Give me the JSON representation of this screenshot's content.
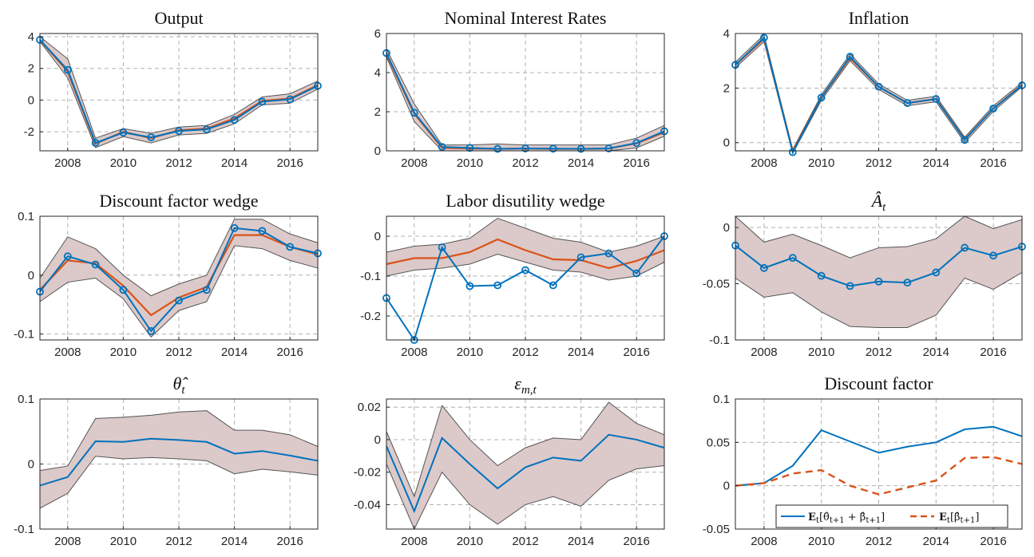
{
  "figure": {
    "colors": {
      "model": "#0072BD",
      "median": "#D95319",
      "band_fill": "#dcc9c9",
      "band_edge": "#555555",
      "grid": "#b0b0b0",
      "axis": "#262626"
    },
    "x_ticks": [
      2008,
      2010,
      2012,
      2014,
      2016
    ],
    "x_range": [
      2007,
      2017
    ]
  },
  "chart_data": [
    {
      "type": "line",
      "title": "Output",
      "xlabel": "",
      "ylabel": "",
      "xlim": [
        2007,
        2017
      ],
      "ylim": [
        -3.2,
        4.2
      ],
      "yticks": [
        -2,
        0,
        2,
        4
      ],
      "grid": true,
      "markers": true,
      "x": [
        2007,
        2008,
        2009,
        2010,
        2011,
        2012,
        2013,
        2014,
        2015,
        2016,
        2017
      ],
      "band": {
        "lower": [
          3.7,
          1.4,
          -3.0,
          -2.3,
          -2.7,
          -2.2,
          -2.1,
          -1.5,
          -0.3,
          -0.2,
          0.7
        ],
        "upper": [
          4.0,
          2.6,
          -2.4,
          -1.8,
          -2.1,
          -1.7,
          -1.6,
          -0.9,
          0.2,
          0.4,
          1.2
        ]
      },
      "series": [
        {
          "role": "model",
          "values": [
            3.8,
            1.9,
            -2.7,
            -2.05,
            -2.35,
            -1.95,
            -1.85,
            -1.25,
            -0.1,
            0.05,
            0.9
          ]
        },
        {
          "role": "median",
          "values": [
            3.8,
            1.8,
            -2.75,
            -2.0,
            -2.4,
            -1.9,
            -1.8,
            -1.15,
            -0.05,
            0.1,
            0.95
          ]
        }
      ]
    },
    {
      "type": "line",
      "title": "Nominal Interest Rates",
      "xlabel": "",
      "ylabel": "",
      "xlim": [
        2007,
        2017
      ],
      "ylim": [
        0,
        6
      ],
      "yticks": [
        0,
        2,
        4,
        6
      ],
      "grid": true,
      "markers": true,
      "x": [
        2007,
        2008,
        2009,
        2010,
        2011,
        2012,
        2013,
        2014,
        2015,
        2016,
        2017
      ],
      "band": {
        "lower": [
          4.8,
          1.5,
          0.0,
          0.0,
          0.0,
          0.0,
          0.0,
          0.0,
          0.0,
          0.15,
          0.75
        ],
        "upper": [
          5.2,
          2.4,
          0.3,
          0.3,
          0.35,
          0.3,
          0.3,
          0.3,
          0.3,
          0.65,
          1.3
        ]
      },
      "series": [
        {
          "role": "model",
          "values": [
            5.0,
            1.95,
            0.2,
            0.15,
            0.1,
            0.12,
            0.11,
            0.1,
            0.12,
            0.4,
            1.0
          ]
        },
        {
          "role": "median",
          "values": [
            4.95,
            1.9,
            0.15,
            0.12,
            0.1,
            0.12,
            0.1,
            0.1,
            0.12,
            0.38,
            0.95
          ]
        }
      ]
    },
    {
      "type": "line",
      "title": "Inflation",
      "xlabel": "",
      "ylabel": "",
      "xlim": [
        2007,
        2017
      ],
      "ylim": [
        -0.3,
        4
      ],
      "yticks": [
        0,
        2,
        4
      ],
      "grid": true,
      "markers": true,
      "x": [
        2007,
        2008,
        2009,
        2010,
        2011,
        2012,
        2013,
        2014,
        2015,
        2016,
        2017
      ],
      "band": {
        "lower": [
          2.75,
          3.7,
          -0.4,
          1.55,
          3.0,
          1.95,
          1.35,
          1.5,
          0.0,
          1.15,
          2.05
        ],
        "upper": [
          2.95,
          3.95,
          -0.25,
          1.75,
          3.25,
          2.15,
          1.55,
          1.7,
          0.2,
          1.35,
          2.2
        ]
      },
      "series": [
        {
          "role": "model",
          "values": [
            2.85,
            3.85,
            -0.35,
            1.65,
            3.15,
            2.05,
            1.45,
            1.6,
            0.1,
            1.25,
            2.1
          ]
        },
        {
          "role": "median",
          "values": [
            2.85,
            3.8,
            -0.3,
            1.65,
            3.1,
            2.05,
            1.45,
            1.6,
            0.12,
            1.25,
            2.12
          ]
        }
      ]
    },
    {
      "type": "line",
      "title": "Discount factor wedge",
      "xlabel": "",
      "ylabel": "",
      "xlim": [
        2007,
        2017
      ],
      "ylim": [
        -0.11,
        0.1
      ],
      "yticks": [
        -0.1,
        0,
        0.1
      ],
      "grid": true,
      "markers": true,
      "x": [
        2007,
        2008,
        2009,
        2010,
        2011,
        2012,
        2013,
        2014,
        2015,
        2016,
        2017
      ],
      "band": {
        "lower": [
          -0.045,
          -0.012,
          -0.005,
          -0.04,
          -0.105,
          -0.06,
          -0.045,
          0.05,
          0.045,
          0.025,
          0.012
        ],
        "upper": [
          -0.005,
          0.065,
          0.045,
          0.0,
          -0.035,
          -0.015,
          0.0,
          0.095,
          0.095,
          0.07,
          0.055
        ]
      },
      "series": [
        {
          "role": "model",
          "values": [
            -0.028,
            0.032,
            0.018,
            -0.025,
            -0.095,
            -0.043,
            -0.025,
            0.08,
            0.075,
            0.048,
            0.037
          ]
        },
        {
          "role": "median",
          "values": [
            -0.025,
            0.025,
            0.02,
            -0.018,
            -0.068,
            -0.038,
            -0.02,
            0.068,
            0.068,
            0.048,
            0.035
          ]
        }
      ]
    },
    {
      "type": "line",
      "title": "Labor disutility wedge",
      "xlabel": "",
      "ylabel": "",
      "xlim": [
        2007,
        2017
      ],
      "ylim": [
        -0.26,
        0.05
      ],
      "yticks": [
        -0.2,
        -0.1,
        0
      ],
      "grid": true,
      "markers": true,
      "x": [
        2007,
        2008,
        2009,
        2010,
        2011,
        2012,
        2013,
        2014,
        2015,
        2016,
        2017
      ],
      "band": {
        "lower": [
          -0.1,
          -0.085,
          -0.08,
          -0.07,
          -0.045,
          -0.065,
          -0.085,
          -0.09,
          -0.11,
          -0.1,
          -0.065
        ],
        "upper": [
          -0.04,
          -0.025,
          -0.02,
          -0.005,
          0.045,
          0.02,
          -0.005,
          -0.015,
          -0.04,
          -0.025,
          0.0
        ]
      },
      "series": [
        {
          "role": "model",
          "values": [
            -0.155,
            -0.26,
            -0.028,
            -0.125,
            -0.123,
            -0.085,
            -0.123,
            -0.053,
            -0.043,
            -0.093,
            0.0
          ]
        },
        {
          "role": "median",
          "values": [
            -0.07,
            -0.055,
            -0.055,
            -0.04,
            -0.008,
            -0.035,
            -0.058,
            -0.06,
            -0.08,
            -0.062,
            -0.035
          ]
        }
      ]
    },
    {
      "type": "line",
      "title": "Â_t",
      "xlabel": "",
      "ylabel": "",
      "xlim": [
        2007,
        2017
      ],
      "ylim": [
        -0.1,
        0.01
      ],
      "yticks": [
        -0.1,
        -0.05,
        0
      ],
      "grid": true,
      "markers": true,
      "x": [
        2007,
        2008,
        2009,
        2010,
        2011,
        2012,
        2013,
        2014,
        2015,
        2016,
        2017
      ],
      "band": {
        "lower": [
          -0.045,
          -0.062,
          -0.058,
          -0.075,
          -0.088,
          -0.089,
          -0.089,
          -0.078,
          -0.045,
          -0.055,
          -0.04
        ],
        "upper": [
          0.01,
          -0.013,
          -0.006,
          -0.016,
          -0.027,
          -0.018,
          -0.017,
          -0.01,
          0.01,
          -0.001,
          0.007
        ]
      },
      "series": [
        {
          "role": "model",
          "values": [
            -0.016,
            -0.036,
            -0.027,
            -0.043,
            -0.052,
            -0.048,
            -0.049,
            -0.04,
            -0.018,
            -0.025,
            -0.017
          ]
        }
      ]
    },
    {
      "type": "line",
      "title": "θ̂_t",
      "xlabel": "",
      "ylabel": "",
      "xlim": [
        2007,
        2017
      ],
      "ylim": [
        -0.1,
        0.1
      ],
      "yticks": [
        -0.1,
        0,
        0.1
      ],
      "grid": true,
      "markers": false,
      "x": [
        2007,
        2008,
        2009,
        2010,
        2011,
        2012,
        2013,
        2014,
        2015,
        2016,
        2017
      ],
      "band": {
        "lower": [
          -0.068,
          -0.045,
          0.012,
          0.008,
          0.01,
          0.008,
          0.005,
          -0.015,
          -0.008,
          -0.012,
          -0.017
        ],
        "upper": [
          -0.01,
          -0.003,
          0.07,
          0.072,
          0.075,
          0.08,
          0.082,
          0.052,
          0.052,
          0.045,
          0.027
        ]
      },
      "series": [
        {
          "role": "model",
          "values": [
            -0.033,
            -0.02,
            0.035,
            0.034,
            0.039,
            0.037,
            0.034,
            0.016,
            0.02,
            0.013,
            0.005
          ]
        }
      ]
    },
    {
      "type": "line",
      "title": "ε_m,t",
      "xlabel": "",
      "ylabel": "",
      "xlim": [
        2007,
        2017
      ],
      "ylim": [
        -0.055,
        0.025
      ],
      "yticks": [
        -0.04,
        -0.02,
        0,
        0.02
      ],
      "grid": true,
      "markers": false,
      "x": [
        2007,
        2008,
        2009,
        2010,
        2011,
        2012,
        2013,
        2014,
        2015,
        2016,
        2017
      ],
      "band": {
        "lower": [
          -0.015,
          -0.055,
          -0.02,
          -0.04,
          -0.052,
          -0.04,
          -0.035,
          -0.041,
          -0.025,
          -0.018,
          -0.016
        ],
        "upper": [
          0.005,
          -0.035,
          0.021,
          0.0,
          -0.016,
          -0.005,
          0.001,
          0.0,
          0.023,
          0.01,
          0.003
        ]
      },
      "series": [
        {
          "role": "model",
          "values": [
            -0.004,
            -0.044,
            0.001,
            -0.015,
            -0.03,
            -0.017,
            -0.011,
            -0.013,
            0.003,
            0.0,
            -0.005
          ]
        }
      ]
    },
    {
      "type": "line",
      "title": "Discount factor",
      "xlabel": "",
      "ylabel": "",
      "xlim": [
        2007,
        2017
      ],
      "ylim": [
        -0.05,
        0.1
      ],
      "yticks": [
        -0.05,
        0,
        0.05,
        0.1
      ],
      "grid": true,
      "markers": false,
      "x": [
        2007,
        2008,
        2009,
        2010,
        2011,
        2012,
        2013,
        2014,
        2015,
        2016,
        2017
      ],
      "series": [
        {
          "name": "E_t[θ̂_{t+1} + β̂_{t+1}]",
          "style": "solid",
          "color": "#0072BD",
          "values": [
            0.0,
            0.003,
            0.023,
            0.064,
            0.051,
            0.038,
            0.045,
            0.05,
            0.065,
            0.068,
            0.057
          ]
        },
        {
          "name": "E_t[β̂_{t+1}]",
          "style": "dashed",
          "color": "#D95319",
          "values": [
            0.0,
            0.003,
            0.014,
            0.018,
            0.0,
            -0.01,
            -0.002,
            0.006,
            0.032,
            0.033,
            0.025
          ]
        }
      ],
      "legend": "bottom-right"
    }
  ]
}
